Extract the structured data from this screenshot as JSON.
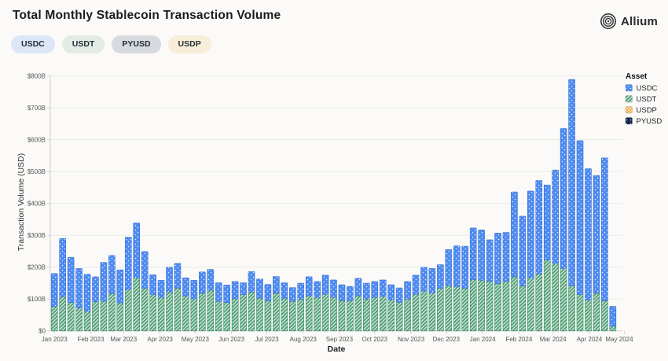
{
  "header": {
    "title": "Total Monthly Stablecoin Transaction Volume"
  },
  "brand": {
    "name": "Allium"
  },
  "filters": [
    {
      "label": "USDC",
      "color": "#dde6f7"
    },
    {
      "label": "USDT",
      "color": "#e3ece4"
    },
    {
      "label": "PYUSD",
      "color": "#d7dade"
    },
    {
      "label": "USDP",
      "color": "#f8edd8"
    }
  ],
  "legend": {
    "title": "Asset",
    "items": [
      {
        "label": "USDC",
        "series": "usdc"
      },
      {
        "label": "USDT",
        "series": "usdt"
      },
      {
        "label": "USDP",
        "series": "usdp"
      },
      {
        "label": "PYUSD",
        "series": "pyusd"
      }
    ]
  },
  "colors": {
    "page_bg": "#fbfaf8",
    "usdc": "#4d8af0",
    "usdc_edge": "#3a72d4",
    "usdc_dot": "#eaf2ff",
    "usdt": "#559e79",
    "usdt_edge": "#418a64",
    "usdt_hatch": "#cfeedd",
    "usdp": "#f0a43c",
    "pyusd": "#14294a",
    "grid": "#e9e9e6",
    "axis": "#cfcfcc",
    "tick_text": "#555555",
    "title_text": "#1c1c1c"
  },
  "chart_data": {
    "type": "bar",
    "stacked": true,
    "title": "Total Monthly Stablecoin Transaction Volume",
    "xlabel": "Date",
    "ylabel": "Transaction Volume (USD)",
    "y_unit": "billions of USD",
    "ylim": [
      0,
      800
    ],
    "grid": true,
    "legend_position": "right",
    "x_description": "weekly bars, weeks from Jan 2023 through late Apr 2024 (69 bars)",
    "x_tick_labels": [
      "Jan 2023",
      "Feb 2023",
      "Mar 2023",
      "Apr 2023",
      "May 2023",
      "Jun 2023",
      "Jul 2023",
      "Aug 2023",
      "Sep 2023",
      "Oct 2023",
      "Nov 2023",
      "Dec 2023",
      "Jan 2024",
      "Feb 2024",
      "Mar 2024",
      "Apr 2024",
      "May 2024"
    ],
    "x_tick_weeks": [
      0,
      4.43,
      8.43,
      12.86,
      17.14,
      21.57,
      25.86,
      30.29,
      34.71,
      39,
      43.43,
      47.71,
      52.14,
      56.57,
      60.71,
      65.14,
      69.43
    ],
    "y_ticks": [
      "$0",
      "$100B",
      "$200B",
      "$300B",
      "$400B",
      "$500B",
      "$600B",
      "$700B",
      "$800B"
    ],
    "stack_order_bottom_to_top": [
      "USDT",
      "USDC"
    ],
    "series": [
      {
        "name": "USDC",
        "pattern": "dots",
        "values_billions": [
          103,
          183,
          142,
          124,
          116,
          78,
          122,
          120,
          104,
          164,
          172,
          115,
          62,
          54,
          78,
          78,
          58,
          58,
          67,
          65,
          58,
          55,
          54,
          37,
          64,
          60,
          51,
          53,
          48,
          43,
          50,
          60,
          50,
          60,
          55,
          50,
          45,
          55,
          50,
          50,
          52,
          47,
          45,
          55,
          60,
          75,
          76,
          74,
          113,
          129,
          132,
          162,
          158,
          131,
          158,
          153,
          266,
          219,
          272,
          293,
          235,
          293,
          439,
          648,
          483,
          412,
          370,
          448,
          62
        ]
      },
      {
        "name": "USDT",
        "pattern": "diagonal-hatch",
        "values_billions": [
          77,
          107,
          89,
          72,
          62,
          92,
          93,
          117,
          88,
          130,
          167,
          134,
          114,
          105,
          122,
          134,
          109,
          101,
          118,
          128,
          93,
          89,
          101,
          114,
          122,
          103,
          95,
          118,
          103,
          93,
          100,
          110,
          105,
          115,
          105,
          95,
          95,
          110,
          100,
          105,
          108,
          98,
          90,
          100,
          115,
          125,
          120,
          134,
          142,
          138,
          134,
          161,
          159,
          155,
          149,
          156,
          170,
          141,
          167,
          179,
          223,
          212,
          196,
          141,
          114,
          97,
          118,
          95,
          15
        ]
      },
      {
        "name": "USDP",
        "pattern": "crosshatch",
        "values_billions": [],
        "note": "no visible segments at this scale (~$0B per week)"
      },
      {
        "name": "PYUSD",
        "pattern": "dot-on-navy",
        "values_billions": [],
        "note": "no visible segments at this scale (~$0B per week)"
      }
    ]
  }
}
